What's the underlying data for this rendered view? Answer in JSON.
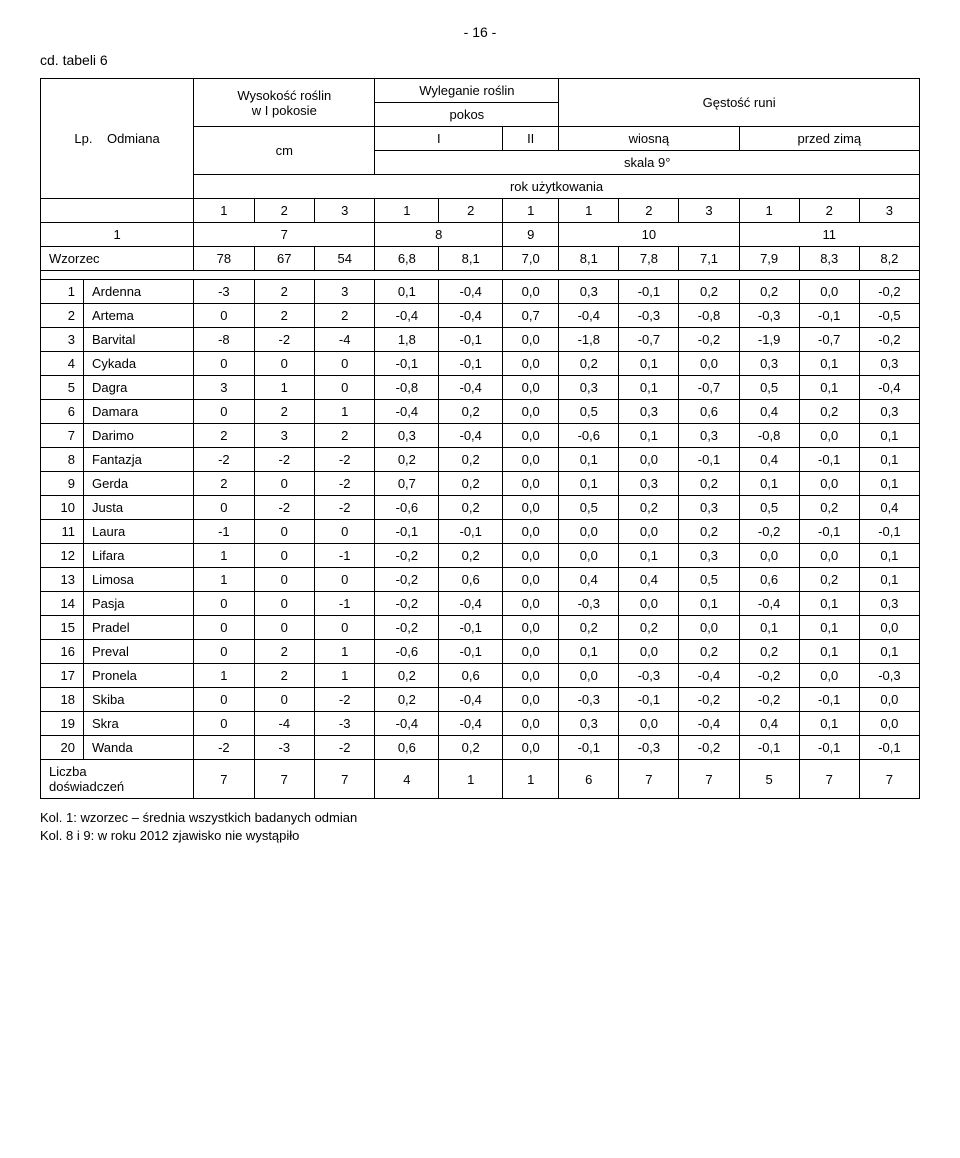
{
  "page_number": "- 16 -",
  "table_title": "cd. tabeli 6",
  "headers": {
    "lp": "Lp.",
    "odmiana": "Odmiana",
    "wysokosc": "Wysokość roślin\nw I pokosie",
    "wyleganie": "Wyleganie roślin",
    "pokos": "pokos",
    "pokos_i": "I",
    "pokos_ii": "II",
    "gestosc": "Gęstość runi",
    "wiosna": "wiosną",
    "przed_zima": "przed zimą",
    "cm": "cm",
    "skala": "skala 9°",
    "rok": "rok użytkowania",
    "years_a": [
      "1",
      "2",
      "3"
    ],
    "years_b": [
      "1",
      "2"
    ],
    "years_c": [
      "1"
    ],
    "years_d": [
      "1",
      "2",
      "3"
    ],
    "years_e": [
      "1",
      "2",
      "3"
    ],
    "col_nums": [
      "1",
      "7",
      "8",
      "9",
      "10",
      "11"
    ]
  },
  "reference": {
    "name": "Wzorzec",
    "v": [
      "78",
      "67",
      "54",
      "6,8",
      "8,1",
      "7,0",
      "8,1",
      "7,8",
      "7,1",
      "7,9",
      "8,3",
      "8,2"
    ]
  },
  "rows": [
    {
      "i": "1",
      "n": "Ardenna",
      "v": [
        "-3",
        "2",
        "3",
        "0,1",
        "-0,4",
        "0,0",
        "0,3",
        "-0,1",
        "0,2",
        "0,2",
        "0,0",
        "-0,2"
      ]
    },
    {
      "i": "2",
      "n": "Artema",
      "v": [
        "0",
        "2",
        "2",
        "-0,4",
        "-0,4",
        "0,7",
        "-0,4",
        "-0,3",
        "-0,8",
        "-0,3",
        "-0,1",
        "-0,5"
      ]
    },
    {
      "i": "3",
      "n": "Barvital",
      "v": [
        "-8",
        "-2",
        "-4",
        "1,8",
        "-0,1",
        "0,0",
        "-1,8",
        "-0,7",
        "-0,2",
        "-1,9",
        "-0,7",
        "-0,2"
      ]
    },
    {
      "i": "4",
      "n": "Cykada",
      "v": [
        "0",
        "0",
        "0",
        "-0,1",
        "-0,1",
        "0,0",
        "0,2",
        "0,1",
        "0,0",
        "0,3",
        "0,1",
        "0,3"
      ]
    },
    {
      "i": "5",
      "n": "Dagra",
      "v": [
        "3",
        "1",
        "0",
        "-0,8",
        "-0,4",
        "0,0",
        "0,3",
        "0,1",
        "-0,7",
        "0,5",
        "0,1",
        "-0,4"
      ]
    },
    {
      "i": "6",
      "n": "Damara",
      "v": [
        "0",
        "2",
        "1",
        "-0,4",
        "0,2",
        "0,0",
        "0,5",
        "0,3",
        "0,6",
        "0,4",
        "0,2",
        "0,3"
      ]
    },
    {
      "i": "7",
      "n": "Darimo",
      "v": [
        "2",
        "3",
        "2",
        "0,3",
        "-0,4",
        "0,0",
        "-0,6",
        "0,1",
        "0,3",
        "-0,8",
        "0,0",
        "0,1"
      ]
    },
    {
      "i": "8",
      "n": "Fantazja",
      "v": [
        "-2",
        "-2",
        "-2",
        "0,2",
        "0,2",
        "0,0",
        "0,1",
        "0,0",
        "-0,1",
        "0,4",
        "-0,1",
        "0,1"
      ]
    },
    {
      "i": "9",
      "n": "Gerda",
      "v": [
        "2",
        "0",
        "-2",
        "0,7",
        "0,2",
        "0,0",
        "0,1",
        "0,3",
        "0,2",
        "0,1",
        "0,0",
        "0,1"
      ]
    },
    {
      "i": "10",
      "n": "Justa",
      "v": [
        "0",
        "-2",
        "-2",
        "-0,6",
        "0,2",
        "0,0",
        "0,5",
        "0,2",
        "0,3",
        "0,5",
        "0,2",
        "0,4"
      ]
    },
    {
      "i": "11",
      "n": "Laura",
      "v": [
        "-1",
        "0",
        "0",
        "-0,1",
        "-0,1",
        "0,0",
        "0,0",
        "0,0",
        "0,2",
        "-0,2",
        "-0,1",
        "-0,1"
      ]
    },
    {
      "i": "12",
      "n": "Lifara",
      "v": [
        "1",
        "0",
        "-1",
        "-0,2",
        "0,2",
        "0,0",
        "0,0",
        "0,1",
        "0,3",
        "0,0",
        "0,0",
        "0,1"
      ]
    },
    {
      "i": "13",
      "n": "Limosa",
      "v": [
        "1",
        "0",
        "0",
        "-0,2",
        "0,6",
        "0,0",
        "0,4",
        "0,4",
        "0,5",
        "0,6",
        "0,2",
        "0,1"
      ]
    },
    {
      "i": "14",
      "n": "Pasja",
      "v": [
        "0",
        "0",
        "-1",
        "-0,2",
        "-0,4",
        "0,0",
        "-0,3",
        "0,0",
        "0,1",
        "-0,4",
        "0,1",
        "0,3"
      ]
    },
    {
      "i": "15",
      "n": "Pradel",
      "v": [
        "0",
        "0",
        "0",
        "-0,2",
        "-0,1",
        "0,0",
        "0,2",
        "0,2",
        "0,0",
        "0,1",
        "0,1",
        "0,0"
      ]
    },
    {
      "i": "16",
      "n": "Preval",
      "v": [
        "0",
        "2",
        "1",
        "-0,6",
        "-0,1",
        "0,0",
        "0,1",
        "0,0",
        "0,2",
        "0,2",
        "0,1",
        "0,1"
      ]
    },
    {
      "i": "17",
      "n": "Pronela",
      "v": [
        "1",
        "2",
        "1",
        "0,2",
        "0,6",
        "0,0",
        "0,0",
        "-0,3",
        "-0,4",
        "-0,2",
        "0,0",
        "-0,3"
      ]
    },
    {
      "i": "18",
      "n": "Skiba",
      "v": [
        "0",
        "0",
        "-2",
        "0,2",
        "-0,4",
        "0,0",
        "-0,3",
        "-0,1",
        "-0,2",
        "-0,2",
        "-0,1",
        "0,0"
      ]
    },
    {
      "i": "19",
      "n": "Skra",
      "v": [
        "0",
        "-4",
        "-3",
        "-0,4",
        "-0,4",
        "0,0",
        "0,3",
        "0,0",
        "-0,4",
        "0,4",
        "0,1",
        "0,0"
      ]
    },
    {
      "i": "20",
      "n": "Wanda",
      "v": [
        "-2",
        "-3",
        "-2",
        "0,6",
        "0,2",
        "0,0",
        "-0,1",
        "-0,3",
        "-0,2",
        "-0,1",
        "-0,1",
        "-0,1"
      ]
    }
  ],
  "liczba": {
    "label": "Liczba\ndoświadczeń",
    "v": [
      "7",
      "7",
      "7",
      "4",
      "1",
      "1",
      "6",
      "7",
      "7",
      "5",
      "7",
      "7"
    ]
  },
  "footer": {
    "line1": "Kol. 1: wzorzec – średnia wszystkich badanych odmian",
    "line2": "Kol. 8 i 9: w roku 2012 zjawisko nie wystąpiło"
  }
}
